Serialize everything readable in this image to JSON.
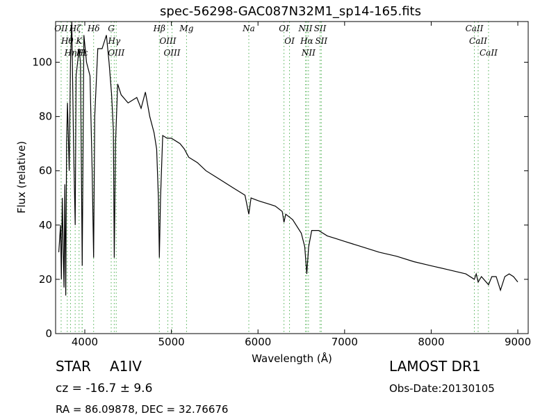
{
  "chart_data": {
    "type": "line",
    "title": "spec-56298-GAC087N32M1_sp14-165.fits",
    "x_label": "Wavelength (Å)",
    "y_label": "Flux (relative)",
    "xlim": [
      3663,
      9120
    ],
    "ylim": [
      0,
      115
    ],
    "xticks": [
      4000,
      5000,
      6000,
      7000,
      8000,
      9000
    ],
    "yticks": [
      0,
      20,
      40,
      60,
      80,
      100
    ],
    "color": "#000000",
    "line_color": "#4caf50",
    "x": [
      3700,
      3720,
      3730,
      3740,
      3760,
      3770,
      3780,
      3790,
      3800,
      3820,
      3835,
      3850,
      3870,
      3889,
      3900,
      3934,
      3950,
      3970,
      3990,
      4020,
      4060,
      4085,
      4102,
      4115,
      4150,
      4200,
      4250,
      4280,
      4310,
      4330,
      4340,
      4355,
      4380,
      4420,
      4500,
      4600,
      4650,
      4700,
      4750,
      4800,
      4830,
      4850,
      4861,
      4875,
      4900,
      4950,
      5000,
      5100,
      5150,
      5200,
      5300,
      5400,
      5500,
      5600,
      5700,
      5800,
      5850,
      5894,
      5920,
      6000,
      6100,
      6200,
      6280,
      6300,
      6320,
      6400,
      6500,
      6540,
      6563,
      6585,
      6620,
      6700,
      6800,
      6900,
      7000,
      7200,
      7400,
      7600,
      7800,
      8000,
      8200,
      8400,
      8498,
      8520,
      8542,
      8580,
      8662,
      8700,
      8750,
      8800,
      8850,
      8900,
      8950,
      9000
    ],
    "values": [
      30,
      40,
      20,
      50,
      17,
      55,
      14,
      70,
      85,
      60,
      100,
      115,
      70,
      40,
      95,
      105,
      100,
      25,
      110,
      100,
      95,
      60,
      28,
      80,
      105,
      105,
      110,
      100,
      88,
      75,
      28,
      70,
      92,
      88,
      85,
      87,
      83,
      89,
      80,
      74,
      68,
      50,
      28,
      50,
      73,
      72,
      72,
      70,
      68,
      65,
      63,
      60,
      58,
      56,
      54,
      52,
      51,
      44,
      50,
      49,
      48,
      47,
      45,
      41,
      44,
      42,
      37,
      32,
      22,
      32,
      38,
      38,
      36,
      35,
      34,
      32,
      30,
      28.5,
      26.5,
      25,
      23.5,
      22,
      20,
      22,
      19,
      21,
      18,
      21,
      21,
      16,
      21,
      22,
      21,
      19
    ],
    "lines": [
      {
        "label": "OII",
        "wavelength": 3727
      },
      {
        "label": "Hθ",
        "wavelength": 3798
      },
      {
        "label": "Hη",
        "wavelength": 3835
      },
      {
        "label": "Hζ",
        "wavelength": 3889
      },
      {
        "label": "K",
        "wavelength": 3934
      },
      {
        "label": "H",
        "wavelength": 3969
      },
      {
        "label": "Hε",
        "wavelength": 3970
      },
      {
        "label": "Hδ",
        "wavelength": 4102
      },
      {
        "label": "G",
        "wavelength": 4305
      },
      {
        "label": "Hγ",
        "wavelength": 4340
      },
      {
        "label": "OIII",
        "wavelength": 4363
      },
      {
        "label": "Hβ",
        "wavelength": 4861
      },
      {
        "label": "OIII",
        "wavelength": 4959
      },
      {
        "label": "OIII",
        "wavelength": 5007
      },
      {
        "label": "Mg",
        "wavelength": 5175
      },
      {
        "label": "Na",
        "wavelength": 5894
      },
      {
        "label": "OI",
        "wavelength": 6300
      },
      {
        "label": "OI",
        "wavelength": 6364
      },
      {
        "label": "NII",
        "wavelength": 6548
      },
      {
        "label": "Hα",
        "wavelength": 6563
      },
      {
        "label": "NII",
        "wavelength": 6583
      },
      {
        "label": "SII",
        "wavelength": 6717
      },
      {
        "label": "SII",
        "wavelength": 6731
      },
      {
        "label": "CaII",
        "wavelength": 8498
      },
      {
        "label": "CaII",
        "wavelength": 8542
      },
      {
        "label": "CaII",
        "wavelength": 8662
      }
    ],
    "footer": {
      "class": "STAR",
      "subclass": "A1IV",
      "cz": "cz = -16.7 ± 9.6",
      "coords": "RA = 86.09878, DEC = 32.76676",
      "survey": "LAMOST DR1",
      "obs_date": "Obs-Date:20130105"
    }
  }
}
